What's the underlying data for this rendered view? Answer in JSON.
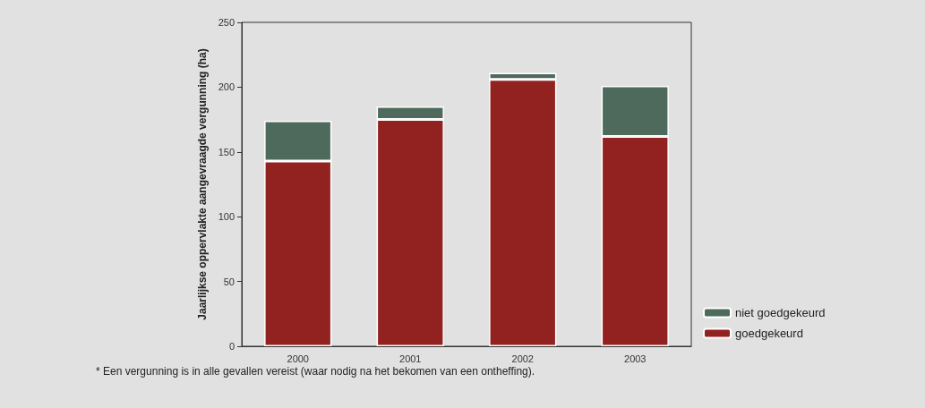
{
  "chart_data": {
    "type": "bar",
    "stacked": true,
    "ylabel": "Jaarlijkse oppervlakte aangevraagde vergunning (ha)",
    "categories": [
      "2000",
      "2001",
      "2002",
      "2003"
    ],
    "series": [
      {
        "name": "goedgekeurd",
        "color": "#922220",
        "values": [
          143,
          175,
          206,
          162
        ]
      },
      {
        "name": "niet goedgekeurd",
        "color": "#4d6a5c",
        "values": [
          31,
          10,
          5,
          39
        ]
      }
    ],
    "ylim": [
      0,
      250
    ],
    "yticks": [
      0,
      50,
      100,
      150,
      200,
      250
    ],
    "grid": false,
    "legend": "bottom right",
    "annotations": [
      "* Een vergunning is in alle gevallen vereist (waar nodig na het bekomen van een ontheffing)."
    ]
  }
}
